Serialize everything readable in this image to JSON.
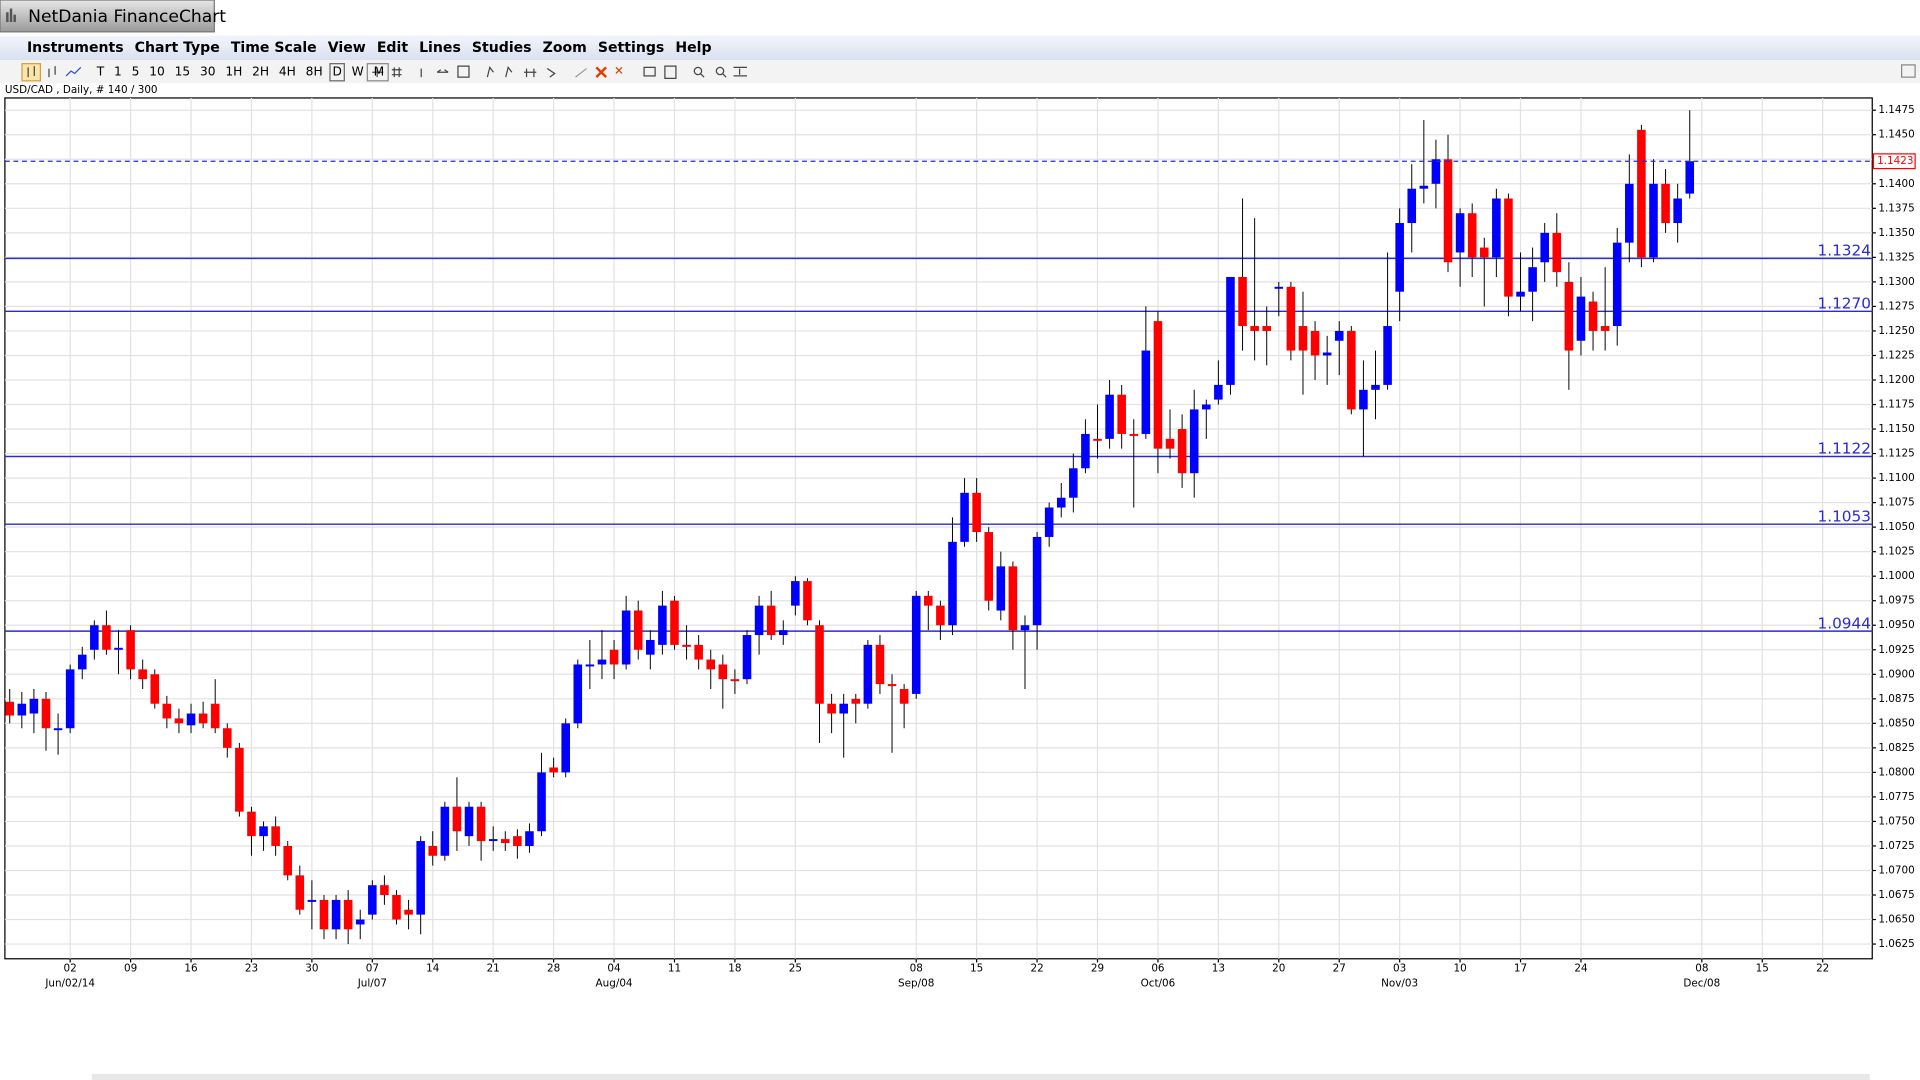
{
  "window": {
    "title": "NetDania FinanceChart"
  },
  "menu": [
    "Instruments",
    "Chart Type",
    "Time Scale",
    "View",
    "Edit",
    "Lines",
    "Studies",
    "Zoom",
    "Settings",
    "Help"
  ],
  "toolbar": [
    "T",
    "1",
    "5",
    "10",
    "15",
    "30",
    "1H",
    "2H",
    "4H",
    "8H",
    "D",
    "W",
    "M"
  ],
  "chart_data": {
    "type": "candlestick",
    "title": "USD/CAD , Daily, # 140 / 300",
    "up_color": "#0000ff",
    "down_color": "#ff0000",
    "grid": true,
    "ylim": [
      1.061,
      1.14875
    ],
    "yticks": [
      1.0625,
      {
        "value": 1.065,
        "label": "1.0650"
      },
      1.0675,
      {
        "value": 1.07,
        "label": "1.0700"
      },
      1.0725,
      {
        "value": 1.075,
        "label": "1.0750"
      },
      1.0775,
      {
        "value": 1.08,
        "label": "1.0800"
      },
      1.0825,
      {
        "value": 1.085,
        "label": "1.0850"
      },
      1.0875,
      {
        "value": 1.09,
        "label": "1.0900"
      },
      1.0925,
      {
        "value": 1.095,
        "label": "1.0950"
      },
      1.0975,
      {
        "value": 1.1,
        "label": "1.1000"
      },
      1.1025,
      {
        "value": 1.105,
        "label": "1.1050"
      },
      1.1075,
      {
        "value": 1.11,
        "label": "1.1100"
      },
      1.1125,
      {
        "value": 1.115,
        "label": "1.1150"
      },
      1.1175,
      {
        "value": 1.12,
        "label": "1.1200"
      },
      1.1225,
      {
        "value": 1.125,
        "label": "1.1250"
      },
      1.1275,
      {
        "value": 1.13,
        "label": "1.1300"
      },
      1.1325,
      {
        "value": 1.135,
        "label": "1.1350"
      },
      1.1375,
      {
        "value": 1.14,
        "label": "1.1400"
      },
      1.1425,
      {
        "value": 1.145,
        "label": "1.1450"
      },
      1.1475
    ],
    "xlim": [
      -0.4,
      154.1
    ],
    "xticks": [
      {
        "value": 5,
        "label": "02"
      },
      {
        "value": 10,
        "label": "09"
      },
      {
        "value": 15,
        "label": "16"
      },
      {
        "value": 20,
        "label": "23"
      },
      {
        "value": 25,
        "label": "30"
      },
      {
        "value": 30,
        "label": "07"
      },
      {
        "value": 35,
        "label": "14"
      },
      {
        "value": 40,
        "label": "21"
      },
      {
        "value": 45,
        "label": "28"
      },
      {
        "value": 50,
        "label": "04"
      },
      {
        "value": 55,
        "label": "11"
      },
      {
        "value": 60,
        "label": "18"
      },
      {
        "value": 65,
        "label": "25"
      },
      {
        "value": 75,
        "label": "08"
      },
      {
        "value": 80,
        "label": "15"
      },
      {
        "value": 85,
        "label": "22"
      },
      {
        "value": 90,
        "label": "29"
      },
      {
        "value": 95,
        "label": "06"
      },
      {
        "value": 100,
        "label": "13"
      },
      {
        "value": 105,
        "label": "20"
      },
      {
        "value": 110,
        "label": "27"
      },
      {
        "value": 115,
        "label": "03"
      },
      {
        "value": 120,
        "label": "10"
      },
      {
        "value": 125,
        "label": "17"
      },
      {
        "value": 130,
        "label": "24"
      },
      {
        "value": 140,
        "label": "08"
      },
      {
        "value": 145,
        "label": "15"
      },
      {
        "value": 150,
        "label": "22"
      }
    ],
    "month_labels": [
      {
        "value": 5,
        "label": "Jun/02/14"
      },
      {
        "value": 30,
        "label": "Jul/07"
      },
      {
        "value": 50,
        "label": "Aug/04"
      },
      {
        "value": 75,
        "label": "Sep/08"
      },
      {
        "value": 95,
        "label": "Oct/06"
      },
      {
        "value": 115,
        "label": "Nov/03"
      },
      {
        "value": 140,
        "label": "Dec/08"
      }
    ],
    "levels": [
      1.1324,
      {
        "value": 1.127,
        "label": "1.1270"
      },
      1.1122,
      1.1053,
      1.0944
    ],
    "last_price": 1.1423,
    "candles": [
      [
        1.0872,
        1.0885,
        1.085,
        1.0858
      ],
      [
        1.0858,
        1.0882,
        1.0845,
        1.087
      ],
      [
        1.086,
        1.0885,
        1.084,
        1.0875
      ],
      [
        1.0875,
        1.0882,
        1.0822,
        1.0845
      ],
      [
        1.0843,
        1.086,
        1.0818,
        1.0845
      ],
      [
        1.0845,
        1.091,
        1.084,
        1.0905
      ],
      [
        1.0905,
        1.0928,
        1.0895,
        1.092
      ],
      [
        1.0925,
        1.0955,
        1.0915,
        1.095
      ],
      [
        1.095,
        1.0965,
        1.092,
        1.0925
      ],
      [
        1.0925,
        1.0945,
        1.09,
        1.0927
      ],
      [
        1.0945,
        1.095,
        1.0895,
        1.0905
      ],
      [
        1.0905,
        1.0915,
        1.0885,
        1.0895
      ],
      [
        1.09,
        1.0905,
        1.0865,
        1.087
      ],
      [
        1.087,
        1.0878,
        1.0845,
        1.0855
      ],
      [
        1.0855,
        1.0865,
        1.084,
        1.085
      ],
      [
        1.0848,
        1.087,
        1.084,
        1.086
      ],
      [
        1.086,
        1.0872,
        1.0845,
        1.085
      ],
      [
        1.087,
        1.0895,
        1.084,
        1.0845
      ],
      [
        1.0845,
        1.085,
        1.0815,
        1.0825
      ],
      [
        1.0825,
        1.083,
        1.0755,
        1.076
      ],
      [
        1.076,
        1.0765,
        1.0715,
        1.0735
      ],
      [
        1.0735,
        1.075,
        1.072,
        1.0745
      ],
      [
        1.0745,
        1.0755,
        1.0715,
        1.0725
      ],
      [
        1.0725,
        1.073,
        1.069,
        1.0695
      ],
      [
        1.0695,
        1.0705,
        1.0655,
        1.066
      ],
      [
        1.0668,
        1.069,
        1.064,
        1.067
      ],
      [
        1.067,
        1.0675,
        1.063,
        1.064
      ],
      [
        1.064,
        1.0675,
        1.063,
        1.067
      ],
      [
        1.067,
        1.068,
        1.0625,
        1.064
      ],
      [
        1.0645,
        1.066,
        1.063,
        1.065
      ],
      [
        1.0655,
        1.069,
        1.065,
        1.0685
      ],
      [
        1.0685,
        1.0695,
        1.0665,
        1.0675
      ],
      [
        1.0675,
        1.068,
        1.0645,
        1.065
      ],
      [
        1.066,
        1.067,
        1.064,
        1.0655
      ],
      [
        1.0655,
        1.0735,
        1.0635,
        1.073
      ],
      [
        1.0725,
        1.074,
        1.0705,
        1.0715
      ],
      [
        1.0715,
        1.077,
        1.071,
        1.0765
      ],
      [
        1.0765,
        1.0795,
        1.072,
        1.074
      ],
      [
        1.0735,
        1.077,
        1.0725,
        1.0765
      ],
      [
        1.0765,
        1.077,
        1.071,
        1.073
      ],
      [
        1.073,
        1.0745,
        1.072,
        1.0732
      ],
      [
        1.0732,
        1.074,
        1.072,
        1.0728
      ],
      [
        1.0735,
        1.0742,
        1.0712,
        1.0725
      ],
      [
        1.0725,
        1.0748,
        1.0718,
        1.074
      ],
      [
        1.074,
        1.082,
        1.0735,
        1.08
      ],
      [
        1.0805,
        1.0815,
        1.0795,
        1.08
      ],
      [
        1.08,
        1.0855,
        1.0795,
        1.085
      ],
      [
        1.085,
        1.0915,
        1.0845,
        1.091
      ],
      [
        1.0908,
        1.0935,
        1.0885,
        1.091
      ],
      [
        1.091,
        1.0945,
        1.0895,
        1.0915
      ],
      [
        1.0925,
        1.0935,
        1.0895,
        1.091
      ],
      [
        1.091,
        1.098,
        1.0905,
        1.0965
      ],
      [
        1.0965,
        1.0975,
        1.0915,
        1.0925
      ],
      [
        1.092,
        1.0945,
        1.0905,
        1.0935
      ],
      [
        1.093,
        1.0985,
        1.092,
        1.097
      ],
      [
        1.0975,
        1.098,
        1.0925,
        1.093
      ],
      [
        1.093,
        1.095,
        1.0915,
        1.0928
      ],
      [
        1.093,
        1.094,
        1.0905,
        1.0915
      ],
      [
        1.0915,
        1.0925,
        1.0885,
        1.0905
      ],
      [
        1.091,
        1.092,
        1.0865,
        1.0895
      ],
      [
        1.0895,
        1.0905,
        1.088,
        1.0893
      ],
      [
        1.0895,
        1.0945,
        1.089,
        1.094
      ],
      [
        1.094,
        1.098,
        1.092,
        1.097
      ],
      [
        1.097,
        1.0985,
        1.0935,
        1.094
      ],
      [
        1.094,
        1.0955,
        1.093,
        1.0945
      ],
      [
        1.097,
        1.1,
        1.096,
        1.0995
      ],
      [
        1.0995,
        1.0998,
        1.095,
        1.0955
      ],
      [
        1.095,
        1.0955,
        1.083,
        1.087
      ],
      [
        1.087,
        1.088,
        1.084,
        1.086
      ],
      [
        1.086,
        1.088,
        1.0815,
        1.087
      ],
      [
        1.0875,
        1.088,
        1.085,
        1.087
      ],
      [
        1.087,
        1.0935,
        1.0865,
        1.093
      ],
      [
        1.093,
        1.094,
        1.088,
        1.089
      ],
      [
        1.089,
        1.09,
        1.082,
        1.0888
      ],
      [
        1.0885,
        1.089,
        1.0845,
        1.087
      ],
      [
        1.088,
        1.0985,
        1.0875,
        1.098
      ],
      [
        1.098,
        1.0985,
        1.0945,
        1.097
      ],
      [
        1.097,
        1.0975,
        1.0935,
        1.095
      ],
      [
        1.095,
        1.106,
        1.094,
        1.1035
      ],
      [
        1.1035,
        1.11,
        1.103,
        1.1085
      ],
      [
        1.1085,
        1.11,
        1.1035,
        1.1045
      ],
      [
        1.1045,
        1.105,
        1.0965,
        1.0975
      ],
      [
        1.0965,
        1.1025,
        1.0955,
        1.101
      ],
      [
        1.101,
        1.1015,
        1.0925,
        1.0945
      ],
      [
        1.0945,
        1.096,
        1.0885,
        1.095
      ],
      [
        1.095,
        1.1045,
        1.0925,
        1.104
      ],
      [
        1.104,
        1.1075,
        1.103,
        1.107
      ],
      [
        1.107,
        1.1095,
        1.106,
        1.108
      ],
      [
        1.108,
        1.1125,
        1.1065,
        1.111
      ],
      [
        1.111,
        1.116,
        1.1105,
        1.1145
      ],
      [
        1.114,
        1.1175,
        1.112,
        1.1138
      ],
      [
        1.114,
        1.12,
        1.113,
        1.1185
      ],
      [
        1.1185,
        1.1195,
        1.113,
        1.1145
      ],
      [
        1.1145,
        1.116,
        1.107,
        1.1143
      ],
      [
        1.1145,
        1.1275,
        1.114,
        1.123
      ],
      [
        1.126,
        1.127,
        1.1105,
        1.113
      ],
      [
        1.114,
        1.117,
        1.112,
        1.113
      ],
      [
        1.115,
        1.1165,
        1.109,
        1.1105
      ],
      [
        1.1105,
        1.119,
        1.108,
        1.117
      ],
      [
        1.117,
        1.118,
        1.114,
        1.1175
      ],
      [
        1.118,
        1.122,
        1.1175,
        1.1195
      ],
      [
        1.1195,
        1.1305,
        1.1185,
        1.1305
      ],
      [
        1.1305,
        1.1385,
        1.123,
        1.1255
      ],
      [
        1.1255,
        1.1365,
        1.122,
        1.125
      ],
      [
        1.1255,
        1.1275,
        1.1215,
        1.125
      ],
      [
        1.1293,
        1.13,
        1.1265,
        1.1295
      ],
      [
        1.1295,
        1.13,
        1.122,
        1.123
      ],
      [
        1.1255,
        1.129,
        1.1185,
        1.123
      ],
      [
        1.125,
        1.126,
        1.12,
        1.1225
      ],
      [
        1.1225,
        1.1245,
        1.1195,
        1.1228
      ],
      [
        1.124,
        1.126,
        1.1205,
        1.125
      ],
      [
        1.125,
        1.1255,
        1.1165,
        1.117
      ],
      [
        1.117,
        1.122,
        1.1122,
        1.119
      ],
      [
        1.119,
        1.123,
        1.116,
        1.1195
      ],
      [
        1.1195,
        1.133,
        1.119,
        1.1255
      ],
      [
        1.129,
        1.1375,
        1.126,
        1.136
      ],
      [
        1.136,
        1.142,
        1.133,
        1.1395
      ],
      [
        1.1395,
        1.1465,
        1.138,
        1.1398
      ],
      [
        1.14,
        1.1445,
        1.1375,
        1.1425
      ],
      [
        1.1425,
        1.145,
        1.131,
        1.132
      ],
      [
        1.133,
        1.1375,
        1.1295,
        1.137
      ],
      [
        1.137,
        1.138,
        1.1305,
        1.1325
      ],
      [
        1.1335,
        1.1345,
        1.1275,
        1.1325
      ],
      [
        1.1325,
        1.1395,
        1.1305,
        1.1385
      ],
      [
        1.1385,
        1.139,
        1.1265,
        1.1285
      ],
      [
        1.1285,
        1.133,
        1.127,
        1.129
      ],
      [
        1.129,
        1.1335,
        1.126,
        1.1315
      ],
      [
        1.132,
        1.136,
        1.13,
        1.135
      ],
      [
        1.135,
        1.137,
        1.1295,
        1.131
      ],
      [
        1.13,
        1.132,
        1.119,
        1.123
      ],
      [
        1.124,
        1.1305,
        1.1225,
        1.1285
      ],
      [
        1.128,
        1.129,
        1.123,
        1.125
      ],
      [
        1.1255,
        1.1315,
        1.123,
        1.125
      ],
      [
        1.1255,
        1.1355,
        1.1235,
        1.134
      ],
      [
        1.134,
        1.143,
        1.132,
        1.14
      ],
      [
        1.1455,
        1.146,
        1.1315,
        1.1325
      ],
      [
        1.1325,
        1.1425,
        1.132,
        1.14
      ],
      [
        1.14,
        1.1415,
        1.135,
        1.136
      ],
      [
        1.136,
        1.14,
        1.134,
        1.1385
      ],
      [
        1.139,
        1.1475,
        1.1385,
        1.1423
      ]
    ]
  }
}
